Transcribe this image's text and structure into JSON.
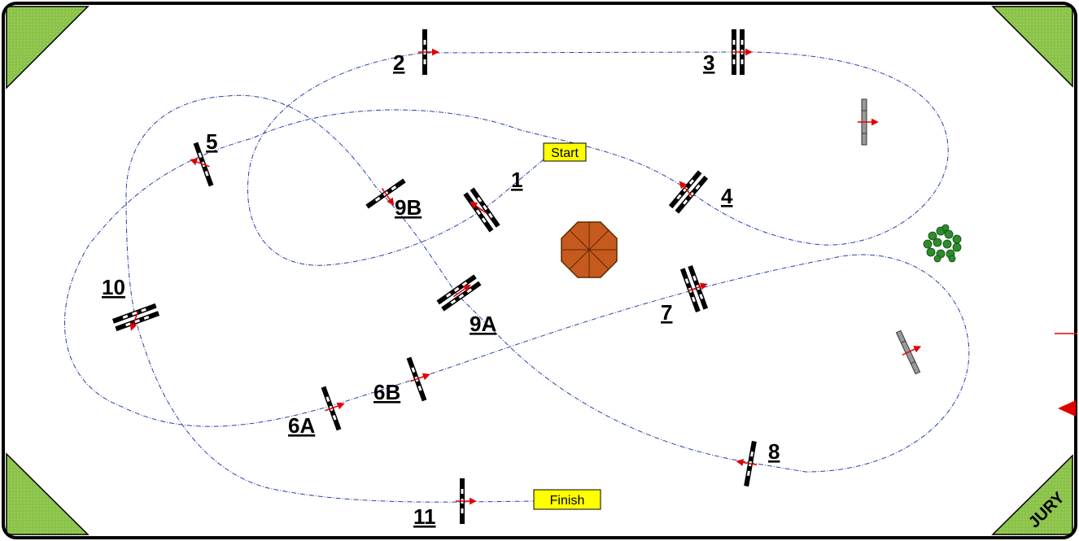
{
  "course": {
    "start_label": "Start",
    "finish_label": "Finish",
    "jury_label": "JURY"
  },
  "obstacles": [
    {
      "id": "1",
      "label": "1",
      "kind": "oxer"
    },
    {
      "id": "2",
      "label": "2",
      "kind": "vertical"
    },
    {
      "id": "3",
      "label": "3",
      "kind": "oxer"
    },
    {
      "id": "4",
      "label": "4",
      "kind": "oxer"
    },
    {
      "id": "5",
      "label": "5",
      "kind": "vertical"
    },
    {
      "id": "6A",
      "label": "6A",
      "kind": "vertical"
    },
    {
      "id": "6B",
      "label": "6B",
      "kind": "vertical"
    },
    {
      "id": "7",
      "label": "7",
      "kind": "oxer"
    },
    {
      "id": "8",
      "label": "8",
      "kind": "vertical"
    },
    {
      "id": "9A",
      "label": "9A",
      "kind": "oxer"
    },
    {
      "id": "9B",
      "label": "9B",
      "kind": "vertical"
    },
    {
      "id": "10",
      "label": "10",
      "kind": "oxer"
    },
    {
      "id": "11",
      "label": "11",
      "kind": "vertical"
    }
  ],
  "colors": {
    "fence": "#000000",
    "fence_stripe": "#ffffff",
    "direction_arrow": "#e00000",
    "route": "#2b3ea8",
    "corner": "#8bc34a",
    "start_finish_box": "#ffff00",
    "octagon": "#c65a1e",
    "shrub": "#2e8b2e",
    "spare_fence": "#999999"
  },
  "icons": [
    "octagon-pavilion-icon",
    "shrub-icon",
    "spare-fence-icon",
    "entrance-arrow-icon"
  ]
}
